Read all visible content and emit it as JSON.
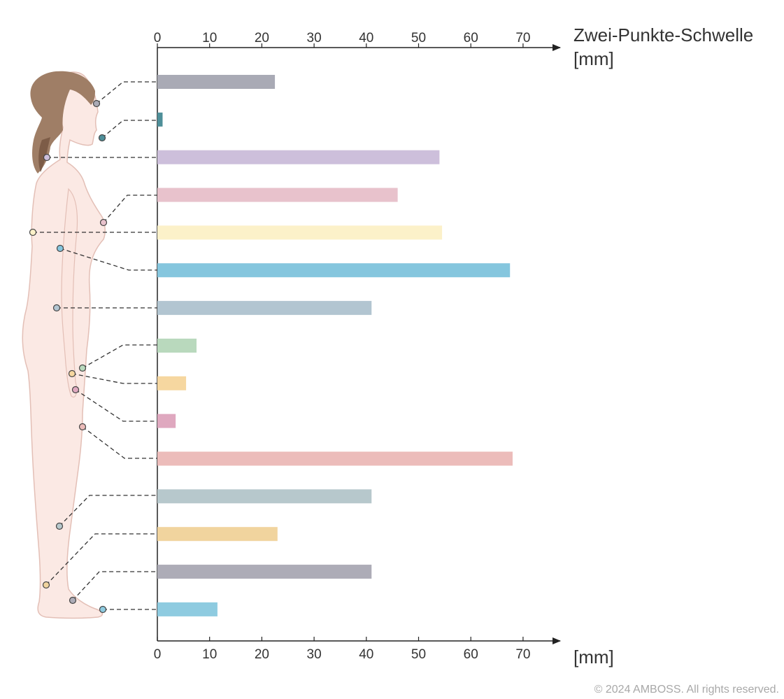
{
  "chart_data": {
    "type": "bar",
    "orientation": "horizontal",
    "title": "Zwei-Punkte-Schwelle",
    "xlabel_top": "[mm]",
    "xlabel_bottom": "[mm]",
    "ylabel": "",
    "xlim": [
      0,
      77
    ],
    "ticks": [
      0,
      10,
      20,
      30,
      40,
      50,
      60,
      70
    ],
    "tick_labels": [
      "0",
      "10",
      "20",
      "30",
      "40",
      "50",
      "60",
      "70"
    ],
    "grid": false,
    "values": [
      22.5,
      1,
      54,
      46,
      54.5,
      67.5,
      41,
      7.5,
      5.5,
      3.5,
      68,
      41,
      23,
      41,
      11.5
    ],
    "colors": [
      "#a9aab5",
      "#4e8f99",
      "#cdbfdb",
      "#e8c2cc",
      "#fcf1c9",
      "#85c6de",
      "#b2c5d1",
      "#b9d9bd",
      "#f6d7a0",
      "#dfa8bf",
      "#ecbcba",
      "#b7c8cc",
      "#f1d49e",
      "#adacb7",
      "#8ecbe0"
    ]
  },
  "copyright": "© 2024 AMBOSS. All rights reserved."
}
